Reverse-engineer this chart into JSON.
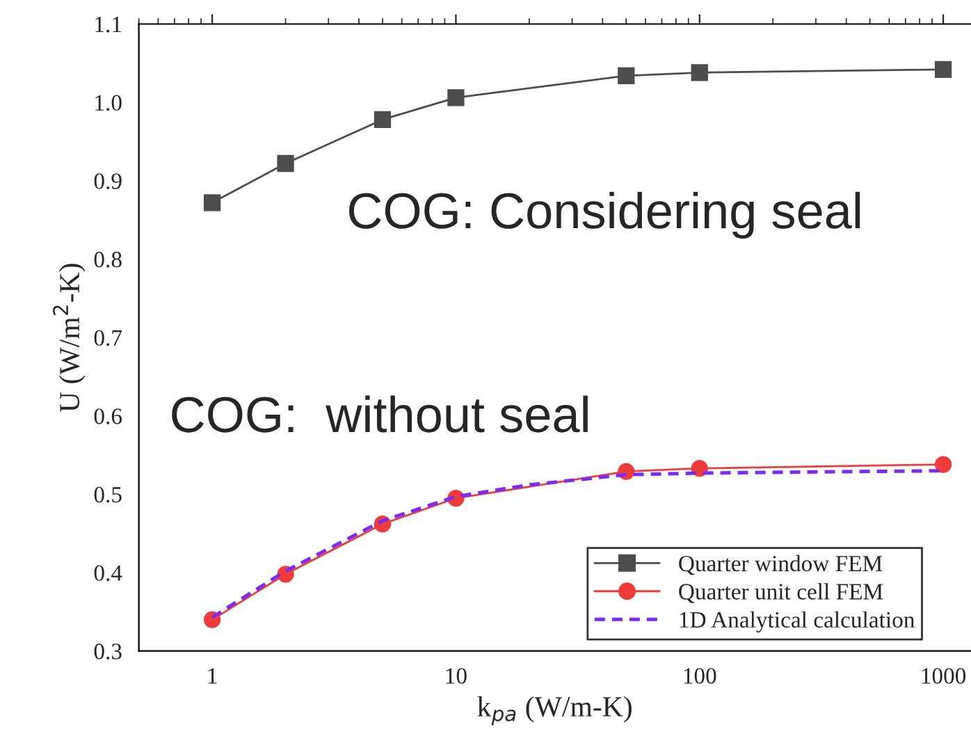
{
  "chart_data": {
    "type": "line",
    "xlabel": "k$_{pa}$ (W/m-K)",
    "ylabel": "U (W/m$^{2}$-K)",
    "log": "x",
    "xlim": [
      0.5,
      1300
    ],
    "xticks": [
      1,
      10,
      100,
      1000
    ],
    "ylim": [
      0.3,
      1.1
    ],
    "yticks": [
      0.3,
      0.4,
      0.5,
      0.6,
      0.7,
      0.8,
      0.9,
      {
        "value": 1.0,
        "label": "1.0"
      },
      1.1
    ],
    "grid": false,
    "legend": "bottom right",
    "series": [
      {
        "name": "Quarter window FEM",
        "color": "#4d4d4d",
        "marker": "square",
        "line_style": "solid",
        "x": [
          1,
          2,
          5,
          10,
          50,
          100,
          1000
        ],
        "values": [
          0.872,
          0.922,
          0.978,
          1.006,
          1.034,
          1.038,
          1.042
        ]
      },
      {
        "name": "Quarter unit cell FEM",
        "color": "#ee3b3b",
        "marker": "circle",
        "line_style": "solid",
        "x": [
          1,
          2,
          5,
          10,
          50,
          100,
          1000
        ],
        "values": [
          0.34,
          0.398,
          0.462,
          0.495,
          0.529,
          0.533,
          0.538
        ]
      },
      {
        "name": "1D Analytical calculation",
        "color": "#7b2cf0",
        "marker": "none",
        "line_style": "dashed",
        "x": [
          1,
          2,
          5,
          10,
          20,
          50,
          100,
          1000
        ],
        "values": [
          0.343,
          0.402,
          0.466,
          0.497,
          0.512,
          0.525,
          0.527,
          0.53
        ]
      }
    ],
    "annotations": [
      "COG: Considering seal",
      "COG:  without seal"
    ]
  }
}
